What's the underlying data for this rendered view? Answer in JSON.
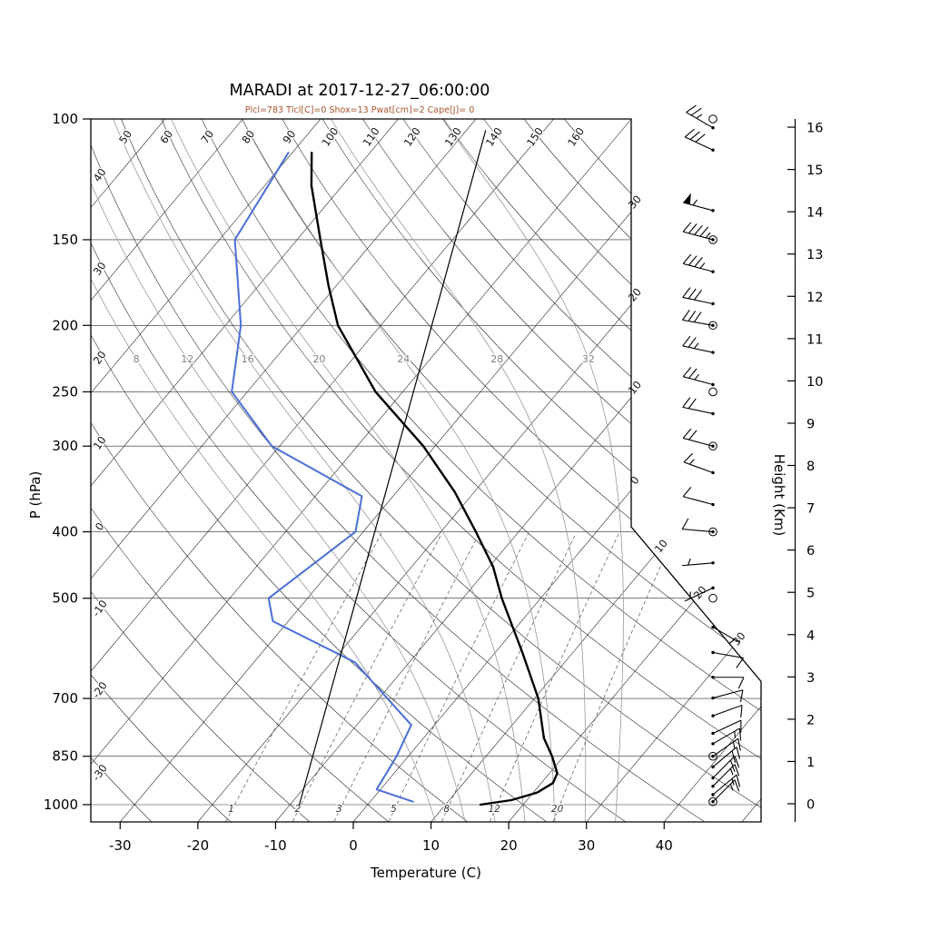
{
  "chart_data": {
    "type": "line",
    "variant": "skew-t-log-p-sounding",
    "station": "MARADI",
    "time": "2017-12-27_06:00:00",
    "title": "MARADI at 2017-12-27_06:00:00",
    "subtitle": "Plcl=783 Tlcl[C]=0 Shox=13 Pwat[cm]=2 Cape[J]= 0",
    "params": {
      "Plcl": 783,
      "Tlcl_C": 0,
      "Shox": 13,
      "Pwat_cm": 2,
      "Cape_J": 0
    },
    "xlabel": "Temperature (C)",
    "ylabel": "P (hPa)",
    "y2label": "Height (Km)",
    "x_ticks": [
      -30,
      -20,
      -10,
      0,
      10,
      20,
      30,
      40
    ],
    "pressure_ticks": [
      100,
      150,
      200,
      250,
      300,
      400,
      500,
      700,
      850,
      1000
    ],
    "height_ticks_km": [
      0,
      1,
      2,
      3,
      4,
      5,
      6,
      7,
      8,
      9,
      10,
      11,
      12,
      13,
      14,
      15,
      16
    ],
    "pressure_range_hpa": [
      100,
      1050
    ],
    "grid_on": true,
    "legend": "none",
    "isotherms": {
      "min": -110,
      "max": 50,
      "step": 10,
      "right_edge_labels": [
        "30",
        "20",
        "10",
        "0"
      ],
      "right_edge_values": [
        -30,
        -20,
        -10,
        0
      ],
      "slant_edge_labels": [
        "10",
        "20",
        "30"
      ],
      "slant_edge_values": [
        10,
        20,
        30
      ]
    },
    "dry_adiabats": {
      "min": -30,
      "max": 160,
      "step": 10,
      "top_labels": [
        50,
        60,
        70,
        80,
        90,
        100,
        110,
        120,
        130,
        140,
        150,
        160
      ],
      "left_labels": [
        40,
        30,
        20,
        10,
        0,
        -10,
        -20,
        -30
      ]
    },
    "moist_adiabats": [
      8,
      12,
      16,
      20,
      24,
      28,
      32
    ],
    "mixing_ratio_g_kg": [
      1,
      2,
      3,
      5,
      8,
      12,
      20
    ],
    "series": [
      {
        "name": "temperature",
        "color": "#000000",
        "width": 2.4,
        "points_p_t": [
          [
            1000,
            14.5
          ],
          [
            985,
            18.0
          ],
          [
            960,
            20.5
          ],
          [
            930,
            21.5
          ],
          [
            900,
            21.0
          ],
          [
            850,
            18.5
          ],
          [
            800,
            15.5
          ],
          [
            700,
            10.5
          ],
          [
            600,
            3.5
          ],
          [
            500,
            -5.0
          ],
          [
            450,
            -9.5
          ],
          [
            400,
            -15.5
          ],
          [
            350,
            -22.5
          ],
          [
            300,
            -31.5
          ],
          [
            250,
            -43.5
          ],
          [
            200,
            -55.5
          ],
          [
            175,
            -61.0
          ],
          [
            150,
            -67.0
          ],
          [
            125,
            -74.0
          ],
          [
            112,
            -77.5
          ]
        ]
      },
      {
        "name": "dewpoint",
        "color": "#4a6fd4",
        "width": 2.0,
        "points_p_t": [
          [
            990,
            5.5
          ],
          [
            950,
            -0.5
          ],
          [
            850,
            -1.5
          ],
          [
            765,
            -3.0
          ],
          [
            620,
            -17.0
          ],
          [
            540,
            -32.0
          ],
          [
            500,
            -35.0
          ],
          [
            400,
            -31.0
          ],
          [
            355,
            -34.0
          ],
          [
            300,
            -51.0
          ],
          [
            250,
            -62.0
          ],
          [
            200,
            -68.0
          ],
          [
            150,
            -78.0
          ],
          [
            112,
            -80.5
          ]
        ]
      },
      {
        "name": "parcel",
        "color": "#000000",
        "width": 1.2,
        "points_p_t": [
          [
            1000,
            -8.8
          ],
          [
            104,
            -57.5
          ]
        ]
      }
    ],
    "wind_barbs": [
      {
        "p": 103,
        "dir": 300,
        "kt": 25
      },
      {
        "p": 111,
        "dir": 295,
        "kt": 30
      },
      {
        "p": 136,
        "dir": 285,
        "kt": 55
      },
      {
        "p": 150,
        "dir": 285,
        "kt": 45
      },
      {
        "p": 167,
        "dir": 285,
        "kt": 35
      },
      {
        "p": 186,
        "dir": 282,
        "kt": 30
      },
      {
        "p": 200,
        "dir": 280,
        "kt": 30
      },
      {
        "p": 219,
        "dir": 282,
        "kt": 25
      },
      {
        "p": 244,
        "dir": 285,
        "kt": 25
      },
      {
        "p": 269,
        "dir": 282,
        "kt": 20
      },
      {
        "p": 300,
        "dir": 285,
        "kt": 20
      },
      {
        "p": 328,
        "dir": 290,
        "kt": 15
      },
      {
        "p": 365,
        "dir": 285,
        "kt": 10
      },
      {
        "p": 400,
        "dir": 275,
        "kt": 10
      },
      {
        "p": 444,
        "dir": 265,
        "kt": 5
      },
      {
        "p": 483,
        "dir": 245,
        "kt": 5
      },
      {
        "p": 551,
        "dir": 120,
        "kt": 5
      },
      {
        "p": 600,
        "dir": 100,
        "kt": 10
      },
      {
        "p": 652,
        "dir": 90,
        "kt": 10
      },
      {
        "p": 699,
        "dir": 75,
        "kt": 10
      },
      {
        "p": 742,
        "dir": 70,
        "kt": 10
      },
      {
        "p": 787,
        "dir": 65,
        "kt": 10
      },
      {
        "p": 815,
        "dir": 60,
        "kt": 15
      },
      {
        "p": 850,
        "dir": 55,
        "kt": 15
      },
      {
        "p": 881,
        "dir": 50,
        "kt": 20
      },
      {
        "p": 914,
        "dir": 45,
        "kt": 20
      },
      {
        "p": 940,
        "dir": 45,
        "kt": 15
      },
      {
        "p": 967,
        "dir": 50,
        "kt": 15
      },
      {
        "p": 990,
        "dir": 45,
        "kt": 15
      }
    ],
    "wind_circle_levels": [
      100,
      150,
      200,
      250,
      300,
      400,
      500,
      850,
      990
    ],
    "colors": {
      "subtitle": "#a8542e",
      "grid": "#2a2a2a",
      "moist_adiabat": "#999999",
      "mixing_ratio": "#555555",
      "temperature": "#000000",
      "dewpoint": "#4a6fd4",
      "frame": "#000000"
    }
  }
}
